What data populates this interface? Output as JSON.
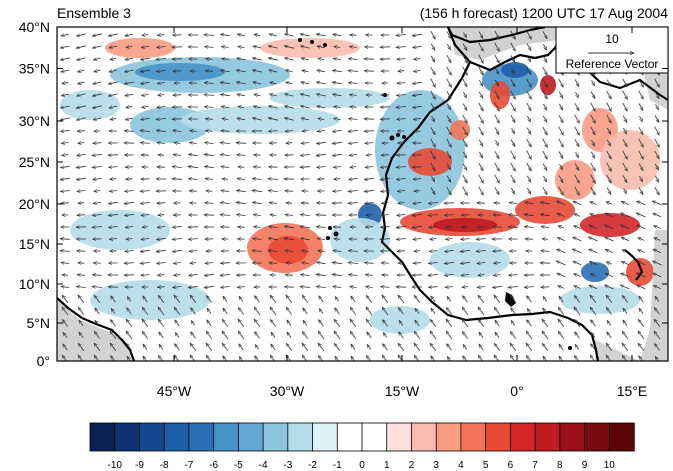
{
  "header": {
    "left_title": "Ensemble 3",
    "right_title": "(156 h forecast) 1200 UTC 17 Aug 2004"
  },
  "map": {
    "lat_labels": [
      "40°N",
      "35°N",
      "30°N",
      "25°N",
      "20°N",
      "15°N",
      "10°N",
      "5°N",
      "0°"
    ],
    "lon_labels": [
      "45°W",
      "30°W",
      "15°W",
      "0°",
      "15°E"
    ],
    "land_color": "#d2d2d2",
    "coast_color": "#000000"
  },
  "reference_vector": {
    "magnitude": "10",
    "label": "Reference Vector"
  },
  "colorbar": {
    "labels": [
      "-10",
      "-9",
      "-8",
      "-7",
      "-6",
      "-5",
      "-4",
      "-3",
      "-2",
      "-1",
      "0",
      "1",
      "2",
      "3",
      "4",
      "5",
      "6",
      "7",
      "8",
      "9",
      "10"
    ],
    "colors": [
      "#0b2453",
      "#0d3470",
      "#15488f",
      "#1f5ea8",
      "#2a70b4",
      "#4792c6",
      "#62a8d2",
      "#8cc3de",
      "#b5dcea",
      "#dff1f8",
      "#ffffff",
      "#ffffff",
      "#fde0dc",
      "#fbbcb0",
      "#f89b85",
      "#f27458",
      "#e74a35",
      "#d3252a",
      "#be1b22",
      "#9c0f1c",
      "#7a0a12",
      "#5c0508"
    ]
  }
}
